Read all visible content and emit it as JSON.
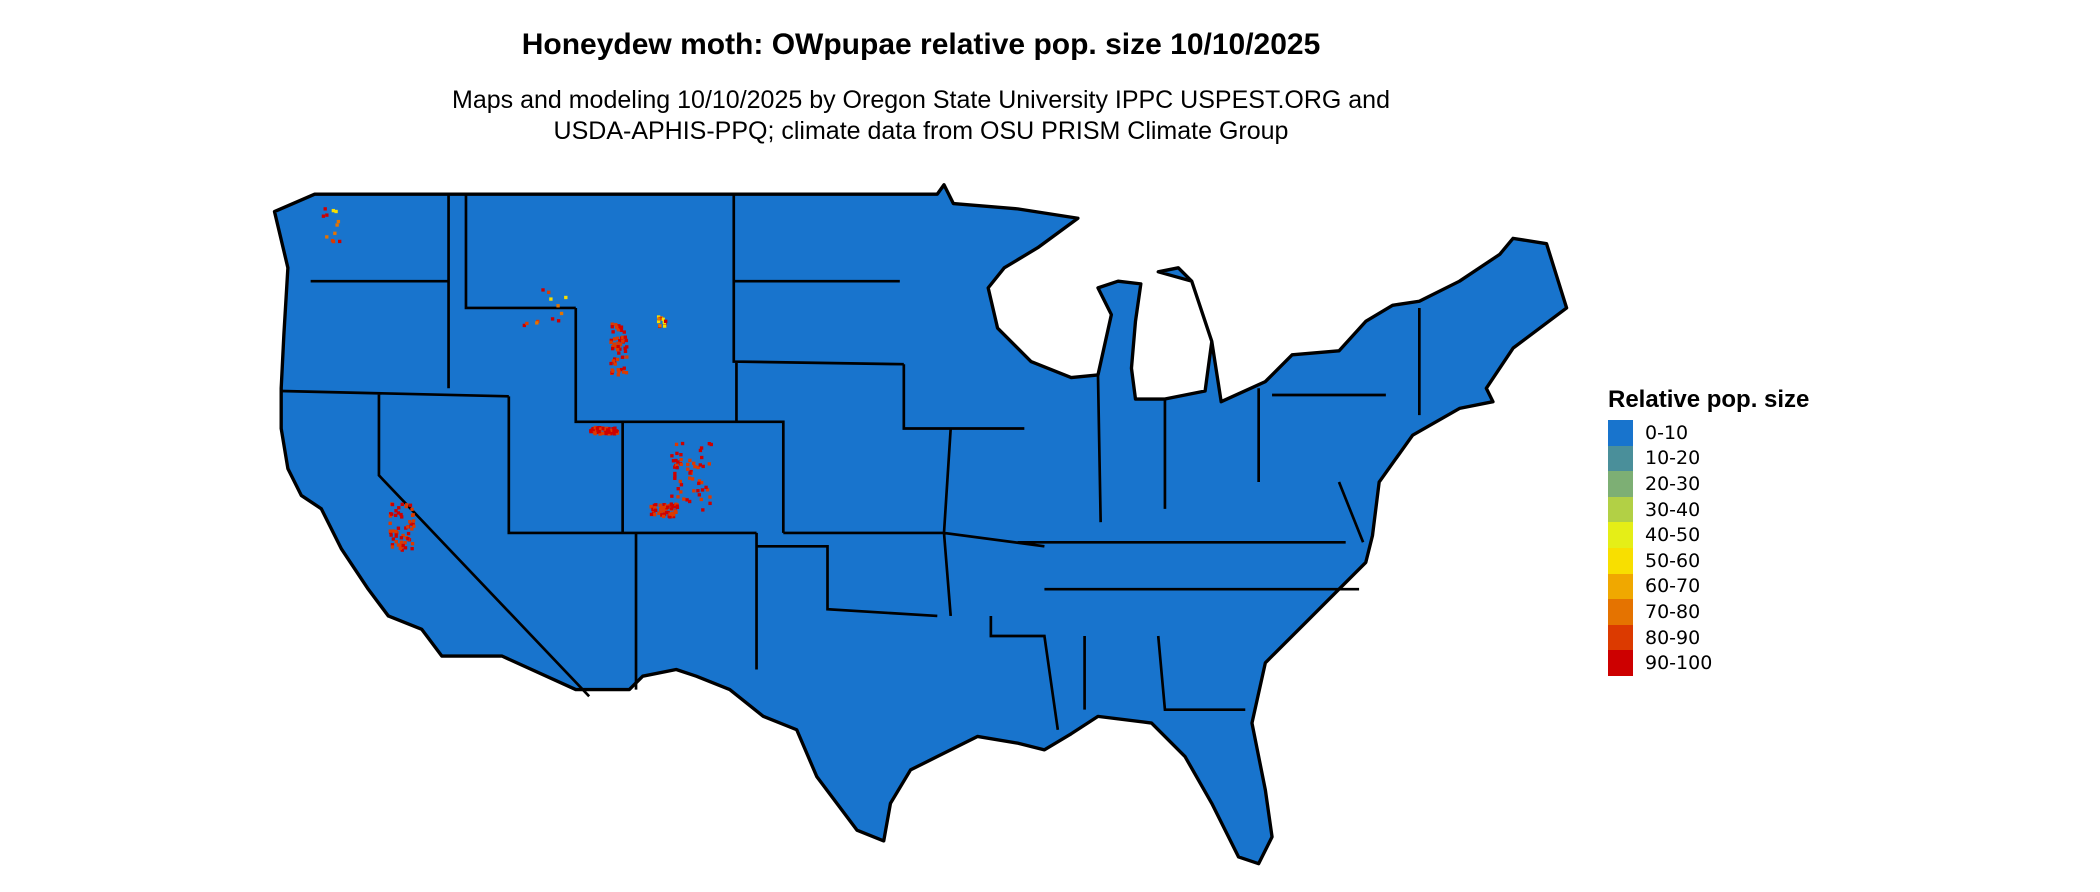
{
  "chart_data": {
    "type": "heatmap",
    "title": "Honeydew moth: OWpupae relative pop. size 10/10/2025",
    "subtitle": [
      "Maps and modeling 10/10/2025 by Oregon State University IPPC USPEST.ORG and",
      "USDA-APHIS-PPQ; climate data from OSU PRISM Climate Group"
    ],
    "legend": {
      "title": "Relative pop. size",
      "placement": "right",
      "items": [
        {
          "label": "0-10",
          "color": "#1874CD"
        },
        {
          "label": "10-20",
          "color": "#4A8F9A"
        },
        {
          "label": "20-30",
          "color": "#7DAF74"
        },
        {
          "label": "30-40",
          "color": "#B2D045"
        },
        {
          "label": "40-50",
          "color": "#E5EE17"
        },
        {
          "label": "50-60",
          "color": "#F8DF00"
        },
        {
          "label": "60-70",
          "color": "#F0A800"
        },
        {
          "label": "70-80",
          "color": "#E57300"
        },
        {
          "label": "80-90",
          "color": "#DC3A00"
        },
        {
          "label": "90-100",
          "color": "#CD0000"
        }
      ]
    },
    "dominant_class": "0-10",
    "hotspot_regions": [
      "Wyoming",
      "Colorado",
      "Utah",
      "California"
    ]
  }
}
